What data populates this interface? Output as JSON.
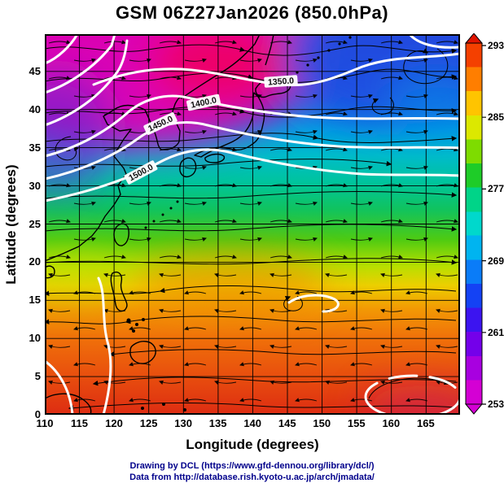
{
  "title": "GSM 06Z27Jan2026 (850.0hPa)",
  "axes": {
    "x_label": "Longitude (degrees)",
    "y_label": "Latitude (degrees)",
    "x_ticks": [
      "110",
      "115",
      "120",
      "125",
      "130",
      "135",
      "140",
      "145",
      "150",
      "155",
      "160",
      "165"
    ],
    "y_ticks": [
      "45",
      "40",
      "35",
      "30",
      "25",
      "20",
      "15",
      "10",
      "5",
      "0"
    ]
  },
  "colorbar": {
    "labels": [
      "293",
      "285",
      "277",
      "269",
      "261",
      "253"
    ]
  },
  "contours": {
    "labels": [
      "1350.0",
      "1400.0",
      "1450.0",
      "1500.0"
    ]
  },
  "footer": {
    "line1": "Drawing by DCL (https://www.gfd-dennou.org/library/dcl/)",
    "line2": "Data from http://database.rish.kyoto-u.ac.jp/arch/jmadata/"
  },
  "chart_data": {
    "type": "heatmap",
    "title": "GSM 06Z27Jan2026 (850.0hPa)",
    "level_hPa": 850,
    "xlabel": "Longitude (degrees)",
    "ylabel": "Latitude (degrees)",
    "xlim": [
      110,
      170
    ],
    "ylim": [
      0,
      50
    ],
    "x_ticks": [
      110,
      115,
      120,
      125,
      130,
      135,
      140,
      145,
      150,
      155,
      160,
      165
    ],
    "y_ticks": [
      0,
      5,
      10,
      15,
      20,
      25,
      30,
      35,
      40,
      45
    ],
    "grid": true,
    "shading": "850 hPa temperature (K), rainbow colormap (magenta=cold, red=warm)",
    "colorbar_ticks": [
      253,
      261,
      269,
      277,
      285,
      293
    ],
    "colorbar_position": "right-vertical",
    "overlays": [
      "black wind streamlines with arrowheads",
      "white geopotential-height contours labeled 1350.0 to 1500.0"
    ],
    "contour_levels": [
      1350,
      1400,
      1450,
      1500
    ],
    "temperature_samples": {
      "note": "approximate values (K) read from the color shading; rows ordered by lats",
      "lons": [
        110,
        120,
        130,
        140,
        150,
        160,
        170
      ],
      "lats": [
        0,
        10,
        20,
        30,
        40,
        50
      ],
      "values_K": [
        [
          293,
          293,
          293,
          292,
          292,
          291,
          291
        ],
        [
          292,
          292,
          292,
          291,
          291,
          290,
          290
        ],
        [
          282,
          284,
          288,
          288,
          286,
          285,
          284
        ],
        [
          277,
          277,
          275,
          276,
          276,
          277,
          276
        ],
        [
          254,
          255,
          258,
          261,
          262,
          264,
          263
        ],
        [
          252,
          252,
          253,
          257,
          259,
          260,
          261
        ]
      ]
    }
  }
}
